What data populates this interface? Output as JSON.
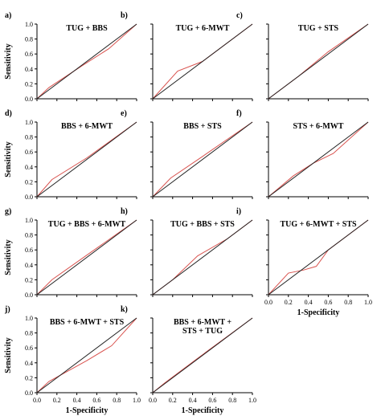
{
  "chart_data": [
    {
      "type": "line",
      "panel": "a)",
      "title": [
        "TUG + BBS"
      ],
      "ylabel": "Sensitivity",
      "xlabel": "",
      "xlim": [
        0,
        1
      ],
      "ylim": [
        0,
        1
      ],
      "xticks": [],
      "yticks": [
        "0.0",
        "0.2",
        "0.4",
        "0.6",
        "0.8",
        "1.0"
      ],
      "series": [
        {
          "x": [
            0,
            0.12,
            0.45,
            0.72,
            1.0
          ],
          "y": [
            0,
            0.15,
            0.44,
            0.67,
            1.0
          ]
        },
        {
          "x": [
            0,
            1
          ],
          "y": [
            0,
            1
          ]
        }
      ]
    },
    {
      "type": "line",
      "panel": "b)",
      "title": [
        "TUG + 6-MWT"
      ],
      "ylabel": "",
      "xlabel": "",
      "xlim": [
        0,
        1
      ],
      "ylim": [
        0,
        1
      ],
      "xticks": [],
      "yticks": [],
      "series": [
        {
          "x": [
            0,
            0.25,
            0.5,
            1.0
          ],
          "y": [
            0,
            0.37,
            0.5,
            1.0
          ]
        },
        {
          "x": [
            0,
            1
          ],
          "y": [
            0,
            1
          ]
        }
      ]
    },
    {
      "type": "line",
      "panel": "c)",
      "title": [
        "TUG + STS"
      ],
      "ylabel": "",
      "xlabel": "",
      "xlim": [
        0,
        1
      ],
      "ylim": [
        0,
        1
      ],
      "xticks": [],
      "yticks": [],
      "series": [
        {
          "x": [
            0,
            0.3,
            0.6,
            1.0
          ],
          "y": [
            0,
            0.3,
            0.63,
            1.0
          ]
        },
        {
          "x": [
            0,
            1
          ],
          "y": [
            0,
            1
          ]
        }
      ]
    },
    {
      "type": "line",
      "panel": "d)",
      "title": [
        "BBS + 6-MWT"
      ],
      "ylabel": "Sensitivity",
      "xlabel": "",
      "xlim": [
        0,
        1
      ],
      "ylim": [
        0,
        1
      ],
      "xticks": [],
      "yticks": [
        "0.0",
        "0.2",
        "0.4",
        "0.6",
        "0.8",
        "1.0"
      ],
      "series": [
        {
          "x": [
            0,
            0.15,
            0.5,
            1.0
          ],
          "y": [
            0,
            0.23,
            0.52,
            1.0
          ]
        },
        {
          "x": [
            0,
            1
          ],
          "y": [
            0,
            1
          ]
        }
      ]
    },
    {
      "type": "line",
      "panel": "e)",
      "title": [
        "BBS + STS"
      ],
      "ylabel": "",
      "xlabel": "",
      "xlim": [
        0,
        1
      ],
      "ylim": [
        0,
        1
      ],
      "xticks": [],
      "yticks": [],
      "series": [
        {
          "x": [
            0,
            0.18,
            0.5,
            1.0
          ],
          "y": [
            0,
            0.25,
            0.54,
            1.0
          ]
        },
        {
          "x": [
            0,
            1
          ],
          "y": [
            0,
            1
          ]
        }
      ]
    },
    {
      "type": "line",
      "panel": "f)",
      "title": [
        "STS + 6-MWT"
      ],
      "ylabel": "",
      "xlabel": "",
      "xlim": [
        0,
        1
      ],
      "ylim": [
        0,
        1
      ],
      "xticks": [],
      "yticks": [],
      "series": [
        {
          "x": [
            0,
            0.25,
            0.45,
            0.65,
            1.0
          ],
          "y": [
            0,
            0.28,
            0.45,
            0.58,
            1.0
          ]
        },
        {
          "x": [
            0,
            1
          ],
          "y": [
            0,
            1
          ]
        }
      ]
    },
    {
      "type": "line",
      "panel": "g)",
      "title": [
        "TUG + BBS + 6-MWT"
      ],
      "ylabel": "Sensitivity",
      "xlabel": "",
      "xlim": [
        0,
        1
      ],
      "ylim": [
        0,
        1
      ],
      "xticks": [],
      "yticks": [
        "0.0",
        "0.2",
        "0.4",
        "0.6",
        "0.8",
        "1.0"
      ],
      "series": [
        {
          "x": [
            0,
            0.15,
            0.5,
            1.0
          ],
          "y": [
            0,
            0.2,
            0.53,
            1.0
          ]
        },
        {
          "x": [
            0,
            1
          ],
          "y": [
            0,
            1
          ]
        }
      ]
    },
    {
      "type": "line",
      "panel": "h)",
      "title": [
        "TUG + BBS + STS"
      ],
      "ylabel": "",
      "xlabel": "",
      "xlim": [
        0,
        1
      ],
      "ylim": [
        0,
        1
      ],
      "xticks": [],
      "yticks": [],
      "series": [
        {
          "x": [
            0,
            0.2,
            0.45,
            0.75,
            1.0
          ],
          "y": [
            0,
            0.2,
            0.52,
            0.75,
            1.0
          ]
        },
        {
          "x": [
            0,
            1
          ],
          "y": [
            0,
            1
          ]
        }
      ]
    },
    {
      "type": "line",
      "panel": "i)",
      "title": [
        "TUG + 6-MWT + STS"
      ],
      "ylabel": "",
      "xlabel": "1-Specificity",
      "xlim": [
        0,
        1
      ],
      "ylim": [
        0,
        1
      ],
      "xticks": [
        "0.0",
        "0.2",
        "0.4",
        "0.6",
        "0.8",
        "1.0"
      ],
      "yticks": [],
      "series": [
        {
          "x": [
            0,
            0.2,
            0.35,
            0.48,
            0.6,
            1.0
          ],
          "y": [
            0,
            0.29,
            0.33,
            0.38,
            0.6,
            1.0
          ]
        },
        {
          "x": [
            0,
            1
          ],
          "y": [
            0,
            1
          ]
        }
      ]
    },
    {
      "type": "line",
      "panel": "j)",
      "title": [
        "BBS + 6-MWT + STS"
      ],
      "ylabel": "Sensitivity",
      "xlabel": "1-Specificity",
      "xlim": [
        0,
        1
      ],
      "ylim": [
        0,
        1
      ],
      "xticks": [
        "0.0",
        "0.2",
        "0.4",
        "0.6",
        "0.8",
        "1.0"
      ],
      "yticks": [
        "0.0",
        "0.2",
        "0.4",
        "0.6",
        "0.8",
        "1.0"
      ],
      "series": [
        {
          "x": [
            0,
            0.12,
            0.5,
            0.75,
            1.0
          ],
          "y": [
            0,
            0.15,
            0.43,
            0.63,
            1.0
          ]
        },
        {
          "x": [
            0,
            1
          ],
          "y": [
            0,
            1
          ]
        }
      ]
    },
    {
      "type": "line",
      "panel": "k)",
      "title": [
        "BBS + 6-MWT +",
        "STS + TUG"
      ],
      "ylabel": "",
      "xlabel": "1-Specificity",
      "xlim": [
        0,
        1
      ],
      "ylim": [
        0,
        1
      ],
      "xticks": [
        "0.0",
        "0.2",
        "0.4",
        "0.6",
        "0.8",
        "1.0"
      ],
      "yticks": [],
      "series": [
        {
          "x": [
            0,
            0.12,
            0.45,
            1.0
          ],
          "y": [
            0,
            0.13,
            0.46,
            1.0
          ]
        },
        {
          "x": [
            0,
            1
          ],
          "y": [
            0,
            1
          ]
        }
      ]
    }
  ],
  "colors": {
    "roc_line": "#d9534f",
    "reference_line": "#222222"
  }
}
